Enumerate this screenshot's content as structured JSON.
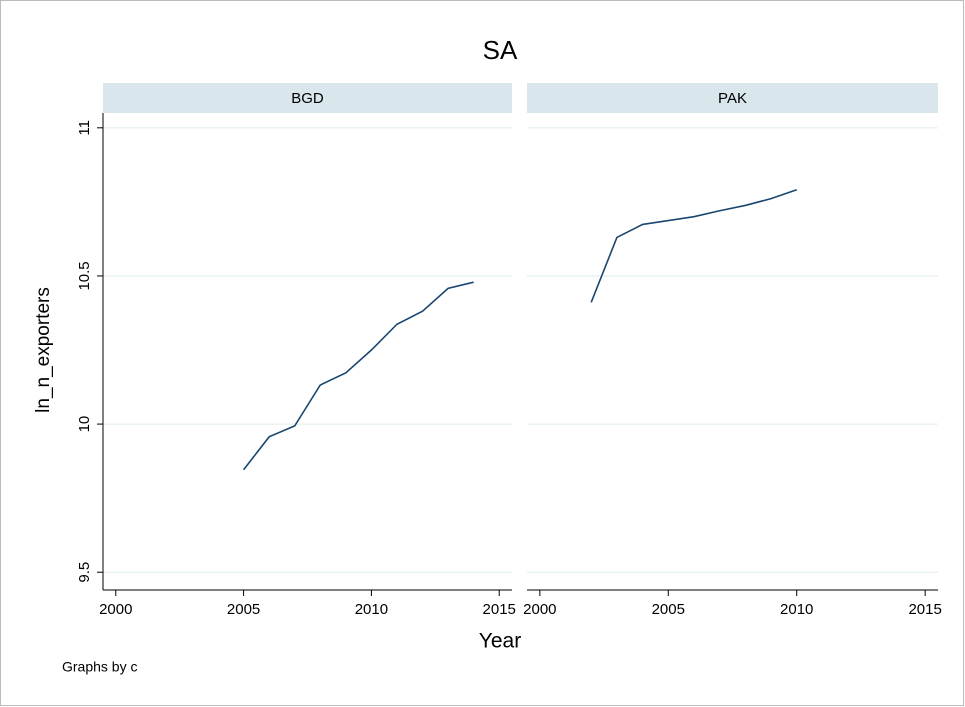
{
  "title": "SA",
  "xlabel": "Year",
  "ylabel": "ln_n_exporters",
  "note": "Graphs by c",
  "chart_data": [
    {
      "type": "line",
      "title": "BGD",
      "color": "#1a476f",
      "x": [
        2005,
        2006,
        2007,
        2008,
        2009,
        2010,
        2011,
        2012,
        2013,
        2014
      ],
      "values": [
        9.846,
        9.957,
        9.994,
        10.132,
        10.173,
        10.25,
        10.337,
        10.381,
        10.458,
        10.479
      ],
      "xlim": [
        1999.5,
        2015.5
      ],
      "xticks": [
        2000,
        2005,
        2010,
        2015
      ],
      "ylim": [
        9.44,
        11.05
      ],
      "yticks": [
        9.5,
        10,
        10.5,
        11
      ],
      "grid": true,
      "y_axis": true
    },
    {
      "type": "line",
      "title": "PAK",
      "color": "#1a476f",
      "x": [
        2002,
        2003,
        2004,
        2005,
        2006,
        2007,
        2008,
        2009,
        2010
      ],
      "values": [
        10.411,
        10.63,
        10.674,
        10.687,
        10.7,
        10.72,
        10.738,
        10.761,
        10.791
      ],
      "xlim": [
        1999.5,
        2015.5
      ],
      "xticks": [
        2000,
        2005,
        2010,
        2015
      ],
      "ylim": [
        9.44,
        11.05
      ],
      "yticks": [
        9.5,
        10,
        10.5,
        11
      ],
      "grid": true,
      "y_axis": false
    }
  ]
}
